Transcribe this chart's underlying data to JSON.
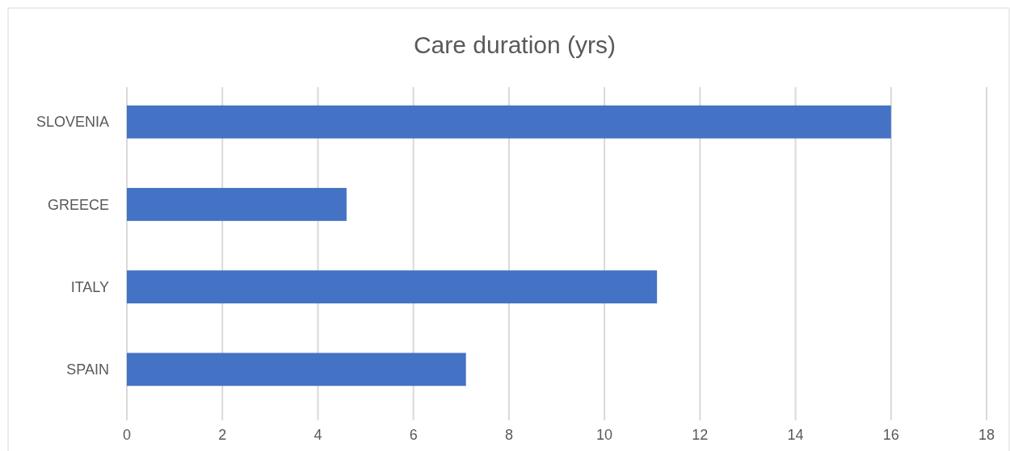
{
  "chart_data": {
    "type": "bar",
    "orientation": "horizontal",
    "title": "Care duration (yrs)",
    "categories": [
      "SLOVENIA",
      "GREECE",
      "ITALY",
      "SPAIN"
    ],
    "values": [
      16,
      4.6,
      11.1,
      7.1
    ],
    "color": "#4472c4",
    "xlim": [
      0,
      18
    ],
    "xticks": [
      0,
      2,
      4,
      6,
      8,
      10,
      12,
      14,
      16,
      18
    ],
    "grid": "x"
  }
}
